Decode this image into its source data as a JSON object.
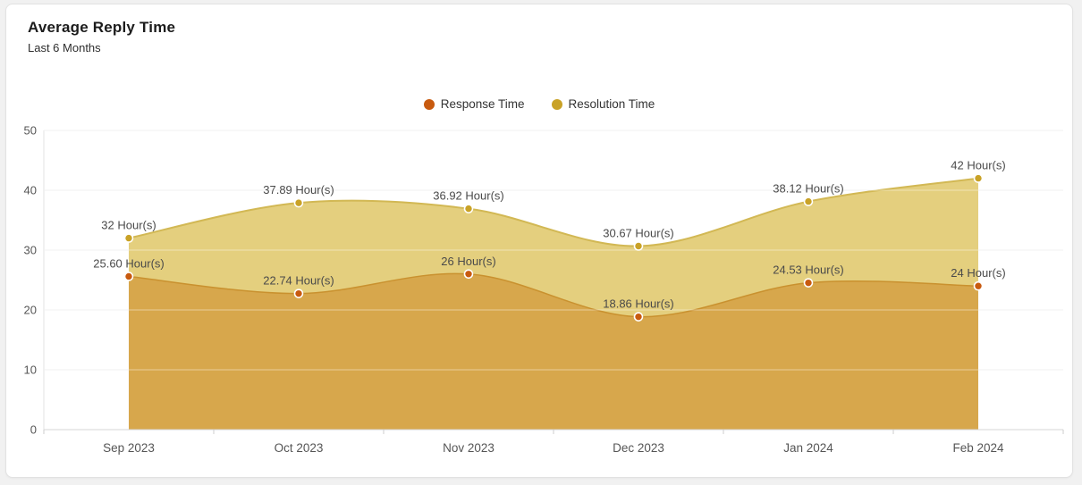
{
  "card": {
    "title": "Average Reply Time",
    "subtitle": "Last 6 Months"
  },
  "chart_data": {
    "type": "area",
    "title": "Average Reply Time",
    "subtitle": "Last 6 Months",
    "categories": [
      "Sep 2023",
      "Oct 2023",
      "Nov 2023",
      "Dec 2023",
      "Jan 2024",
      "Feb 2024"
    ],
    "series": [
      {
        "name": "Response Time",
        "dot_color": "#c85a0f",
        "area_color": "#d7a74c",
        "edge_color": "#c9912f",
        "values": [
          25.6,
          22.74,
          26,
          18.86,
          24.53,
          24
        ],
        "point_labels": [
          "25.60 Hour(s)",
          "22.74 Hour(s)",
          "26 Hour(s)",
          "18.86 Hour(s)",
          "24.53 Hour(s)",
          "24 Hour(s)"
        ]
      },
      {
        "name": "Resolution Time",
        "dot_color": "#c9a227",
        "area_color": "#e4cf7e",
        "edge_color": "#d2b854",
        "values": [
          32,
          37.89,
          36.92,
          30.67,
          38.12,
          42
        ],
        "point_labels": [
          "32 Hour(s)",
          "37.89 Hour(s)",
          "36.92 Hour(s)",
          "30.67 Hour(s)",
          "38.12 Hour(s)",
          "42 Hour(s)"
        ]
      }
    ],
    "unit_suffix": " Hour(s)",
    "ylim": [
      0,
      50
    ],
    "yticks": [
      0,
      10,
      20,
      30,
      40,
      50
    ],
    "grid": true,
    "legend_position": "top-center",
    "colors": {
      "gridline": "#e9e9e9",
      "axis_line": "#d6d6d6",
      "tick_label": "#555555",
      "point_label": "#4a4a4a"
    }
  }
}
